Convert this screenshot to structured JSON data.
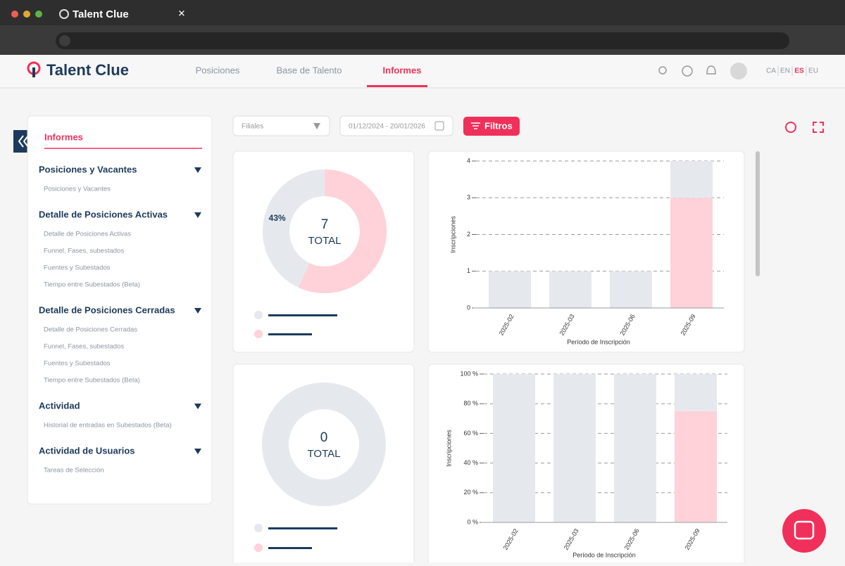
{
  "browser": {
    "tab_title": "Talent Clue"
  },
  "nav": {
    "brand": "Talent Clue",
    "tabs": [
      "Posiciones",
      "Base de Talento",
      "Informes"
    ],
    "languages": [
      "CA",
      "EN",
      "ES",
      "EU"
    ]
  },
  "sidebar": {
    "title": "Informes",
    "sections": [
      {
        "title": "Posiciones y Vacantes",
        "items": [
          "Posiciones y Vacantes"
        ]
      },
      {
        "title": "Detalle de Posiciones Activas",
        "items": [
          "Detalle de Posiciones Activas",
          "Funnel, Fases, subestados",
          "Fuentes y Subestados",
          "Tiempo entre Subestados (Beta)"
        ]
      },
      {
        "title": "Detalle de Posiciones Cerradas",
        "items": [
          "Detalle de Posiciones Cerradas",
          "Funnel, Fases, subestados",
          "Fuentes y Subestados",
          "Tiempo entre Subestados (Beta)"
        ]
      },
      {
        "title": "Actividad",
        "items": [
          "Historial de entradas en Subestados (Beta)"
        ]
      },
      {
        "title": "Actividad de Usuarios",
        "items": [
          "Tareas de Selección"
        ]
      }
    ]
  },
  "toolbar": {
    "branch_select": "Filiales",
    "date_range": "01/12/2024 - 20/01/2026",
    "filters_button": "Filtros"
  },
  "chart_data": [
    {
      "type": "donut",
      "total": 7,
      "total_label": "TOTAL",
      "values": [
        57,
        43
      ],
      "value_labels": [
        null,
        "43%"
      ],
      "colors": [
        "#ffd1d9",
        "#e5e9ee"
      ]
    },
    {
      "type": "stacked-bar",
      "y_label": "Inscripciones",
      "x_label": "Período de Inscripción",
      "categories": [
        "2025-02",
        "2025-03",
        "2025-06",
        "2025-09"
      ],
      "series": [
        {
          "color": "#ffd1d9",
          "values": [
            0,
            0,
            0,
            3
          ]
        },
        {
          "color": "#e5e9ee",
          "values": [
            1,
            1,
            1,
            1
          ]
        }
      ],
      "ylim": [
        0,
        4
      ],
      "yticks": [
        0,
        1,
        2,
        3,
        4
      ],
      "grid": true
    },
    {
      "type": "donut",
      "total": 0,
      "total_label": "TOTAL",
      "values": [],
      "colors": []
    },
    {
      "type": "stacked-bar",
      "y_label": "Inscripciones",
      "x_label": "Período de Inscripción",
      "categories": [
        "2025-02",
        "2025-03",
        "2025-06",
        "2025-09"
      ],
      "series": [
        {
          "color": "#ffd1d9",
          "values": [
            0,
            0,
            0,
            75
          ]
        },
        {
          "color": "#e5e9ee",
          "values": [
            100,
            100,
            100,
            25
          ]
        }
      ],
      "ylim": [
        0,
        100
      ],
      "yticks": [
        {
          "value": 0,
          "label": "0 %"
        },
        {
          "value": 20,
          "label": "20 %"
        },
        {
          "value": 40,
          "label": "40 %"
        },
        {
          "value": 60,
          "label": "60 %"
        },
        {
          "value": 80,
          "label": "80 %"
        },
        {
          "value": 100,
          "label": "100 %"
        }
      ],
      "grid": true
    }
  ]
}
